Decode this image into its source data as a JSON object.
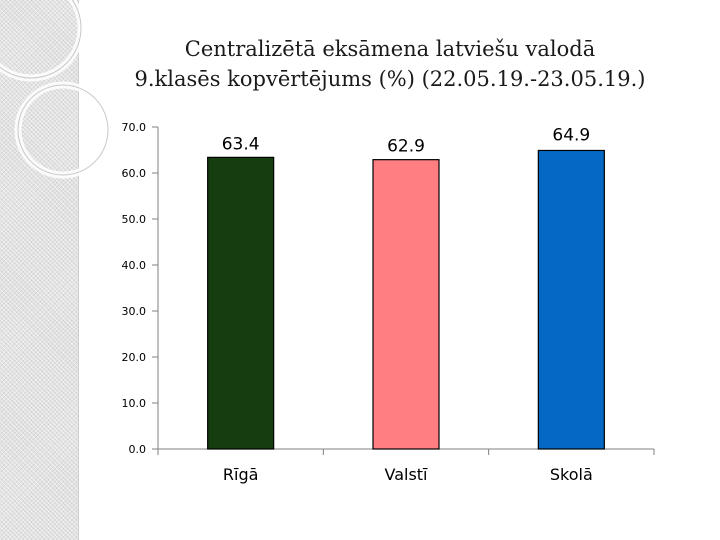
{
  "chart_data": {
    "type": "bar",
    "title": [
      "Centralizētā eksāmena latviešu valodā",
      "9.klasēs kopvērtējums (%) (22.05.19.-23.05.19.)"
    ],
    "categories": [
      "Rīgā",
      "Valstī",
      "Skolā"
    ],
    "values": [
      63.4,
      62.9,
      64.9
    ],
    "value_labels": [
      "63.4",
      "62.9",
      "64.9"
    ],
    "bar_colors": [
      "#163d10",
      "#ff7e82",
      "#0568c4"
    ],
    "ylim": [
      0,
      70
    ],
    "yticks": [
      0,
      10,
      20,
      30,
      40,
      50,
      60,
      70
    ],
    "ytick_labels": [
      "0.0",
      "10.0",
      "20.0",
      "30.0",
      "40.0",
      "50.0",
      "60.0",
      "70.0"
    ],
    "grid": false,
    "legend": false,
    "xlabel": "",
    "ylabel": ""
  }
}
